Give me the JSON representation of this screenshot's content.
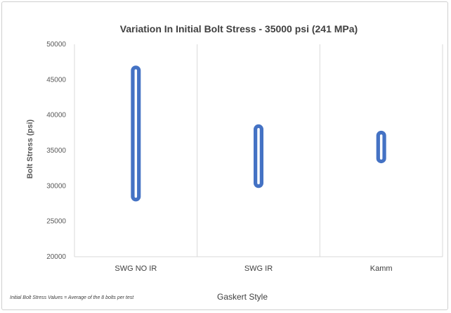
{
  "chart_data": {
    "type": "range",
    "title": "Variation In Initial Bolt Stress - 35000 psi (241 MPa)",
    "ylabel": "Bolt Stress (psi)",
    "xlabel": "Gaskert Style",
    "footnote": "Initial Bolt Stress Values = Average of the 8 bolts per test",
    "ylim": [
      20000,
      50000
    ],
    "yticks": [
      20000,
      25000,
      30000,
      35000,
      40000,
      45000,
      50000
    ],
    "categories": [
      "SWG NO IR",
      "SWG IR",
      "Kamm"
    ],
    "ranges": [
      {
        "min": 28500,
        "max": 46300
      },
      {
        "min": 30400,
        "max": 38000
      },
      {
        "min": 33900,
        "max": 37100
      }
    ],
    "grid": "vertical",
    "colors": {
      "series": "#4472c4",
      "grid": "#d9d9d9",
      "text": "#595959"
    }
  }
}
